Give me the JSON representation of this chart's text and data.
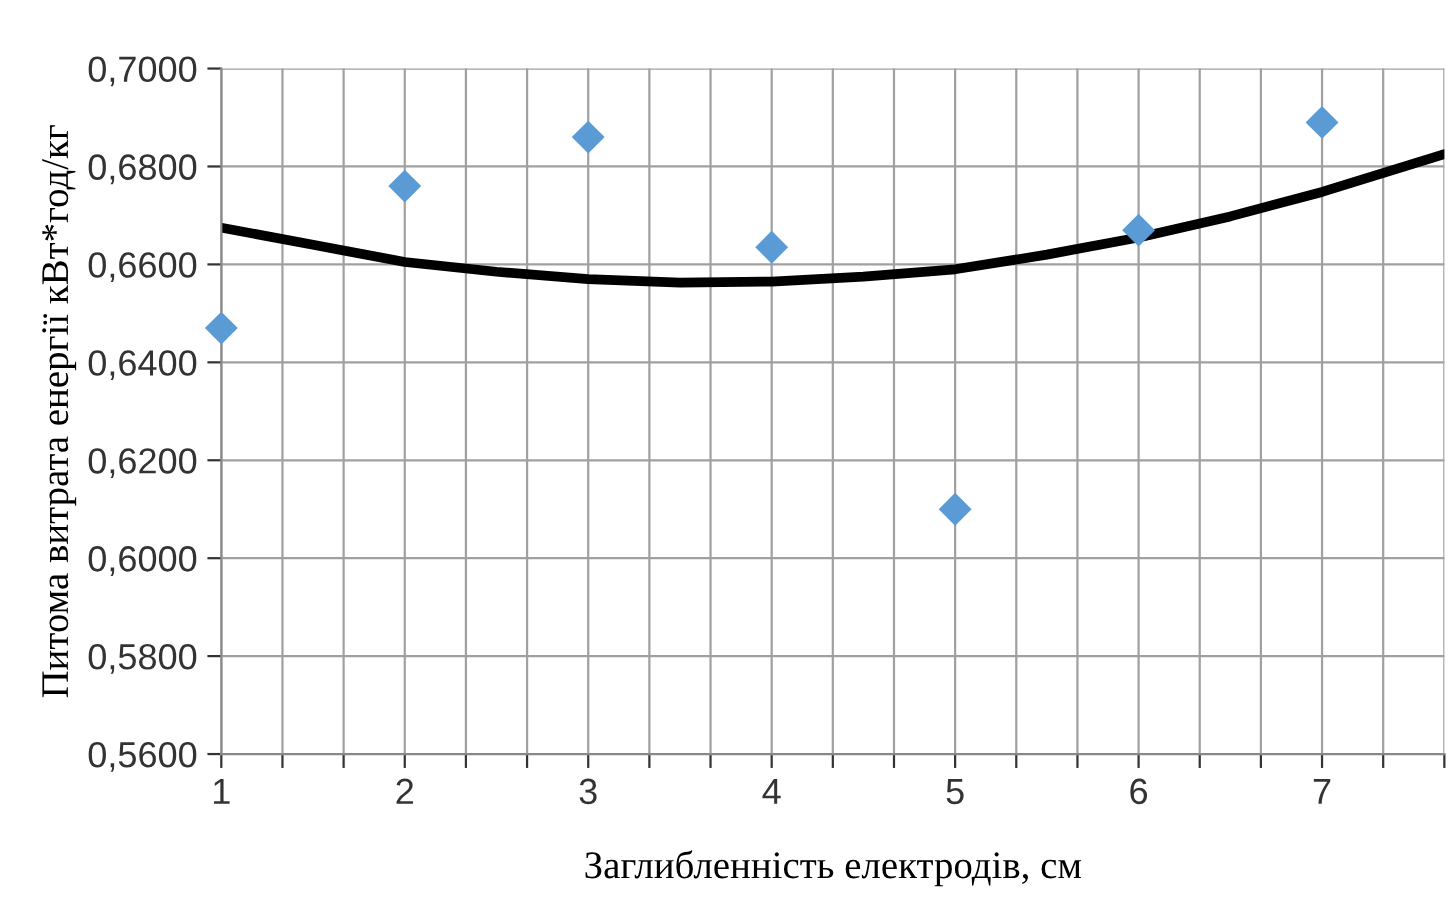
{
  "chart_data": {
    "type": "scatter",
    "xlabel": "Заглибленність електродів, см",
    "ylabel": "Питома витрата енергії кВт*год/кг",
    "xlim": [
      1,
      7.6667
    ],
    "ylim": [
      0.56,
      0.7
    ],
    "xticks": [
      1,
      {
        "value": 1.3333,
        "label": null
      },
      {
        "value": 1.6667,
        "label": null
      },
      2,
      {
        "value": 2.3333,
        "label": null
      },
      {
        "value": 2.6667,
        "label": null
      },
      3,
      {
        "value": 3.3333,
        "label": null
      },
      {
        "value": 3.6667,
        "label": null
      },
      4,
      {
        "value": 4.3333,
        "label": null
      },
      {
        "value": 4.6667,
        "label": null
      },
      5,
      {
        "value": 5.3333,
        "label": null
      },
      {
        "value": 5.6667,
        "label": null
      },
      6,
      {
        "value": 6.3333,
        "label": null
      },
      {
        "value": 6.6667,
        "label": null
      },
      7,
      {
        "value": 7.3333,
        "label": null
      },
      {
        "value": 7.6667,
        "label": null
      }
    ],
    "yticks": [
      {
        "value": 0.56,
        "label": "0,5600"
      },
      {
        "value": 0.58,
        "label": "0,5800"
      },
      {
        "value": 0.6,
        "label": "0,6000"
      },
      {
        "value": 0.62,
        "label": "0,6200"
      },
      {
        "value": 0.64,
        "label": "0,6400"
      },
      {
        "value": 0.66,
        "label": "0,6600"
      },
      {
        "value": 0.68,
        "label": "0,6800"
      },
      {
        "value": 0.7,
        "label": "0,7000"
      }
    ],
    "grid": true,
    "marker": "diamond",
    "series": [
      {
        "color": "#5b9bd5",
        "x": [
          1,
          2,
          3,
          4,
          5,
          6,
          7
        ],
        "values": [
          0.647,
          0.676,
          0.686,
          0.6635,
          0.61,
          0.667,
          0.689
        ]
      },
      {
        "type": "line",
        "color": "#000000",
        "marker": "none",
        "x": [
          1,
          1.5,
          2,
          2.5,
          3,
          3.5,
          4,
          4.5,
          5,
          5.5,
          6,
          6.5,
          7,
          7.6667
        ],
        "values": [
          0.6675,
          0.664,
          0.6605,
          0.6585,
          0.657,
          0.6563,
          0.6565,
          0.6575,
          0.659,
          0.662,
          0.6655,
          0.6698,
          0.6748,
          0.6825
        ]
      }
    ]
  }
}
